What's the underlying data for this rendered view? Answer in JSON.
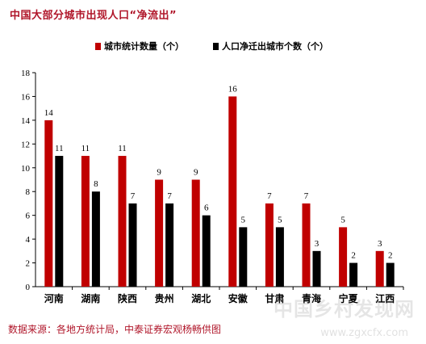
{
  "title": "中国大部分城市出现人口“净流出”",
  "source": "数据来源：各地方统计局，中泰证券宏观杨畅供图",
  "watermark": {
    "text": "中国乡村发现网",
    "url": "www.zgxcfx.com"
  },
  "colors": {
    "series1": "#c00000",
    "series2": "#000000",
    "title": "#b0162a"
  },
  "chart_data": {
    "type": "bar",
    "categories": [
      "河南",
      "湖南",
      "陕西",
      "贵州",
      "湖北",
      "安徽",
      "甘肃",
      "青海",
      "宁夏",
      "江西"
    ],
    "series": [
      {
        "name": "城市统计数量（个）",
        "color": "#c00000",
        "values": [
          14,
          11,
          11,
          9,
          9,
          16,
          7,
          7,
          5,
          3
        ]
      },
      {
        "name": "人口净迁出城市个数（个）",
        "color": "#000000",
        "values": [
          11,
          8,
          7,
          7,
          6,
          5,
          5,
          3,
          2,
          2
        ]
      }
    ],
    "ylim": [
      0,
      18
    ],
    "yticks": [
      0,
      2,
      4,
      6,
      8,
      10,
      12,
      14,
      16,
      18
    ],
    "legend_position": "top-center",
    "grid": false
  }
}
